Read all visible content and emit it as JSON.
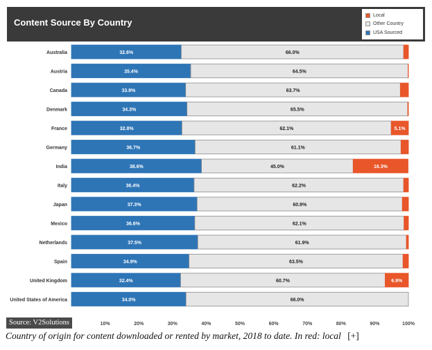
{
  "header": {
    "title": "Content Source By Country"
  },
  "legend": [
    {
      "label": "Local",
      "color": "#e8562a"
    },
    {
      "label": "Other Country",
      "color": "#e6e6e6"
    },
    {
      "label": "USA Sourced",
      "color": "#2e75b6"
    }
  ],
  "chart_data": {
    "type": "bar",
    "orientation": "horizontal",
    "stacked": true,
    "title": "Content Source By Country",
    "xlim": [
      0,
      100
    ],
    "xticks": [
      "10%",
      "20%",
      "30%",
      "40%",
      "50%",
      "60%",
      "70%",
      "80%",
      "90%",
      "100%"
    ],
    "categories": [
      "Australia",
      "Austria",
      "Canada",
      "Denmark",
      "France",
      "Germany",
      "India",
      "Italy",
      "Japan",
      "Mexico",
      "Netherlands",
      "Spain",
      "United Kingdom",
      "United States of America"
    ],
    "series": [
      {
        "name": "USA Sourced",
        "color": "#2e75b6",
        "values": [
          32.6,
          35.4,
          33.9,
          34.3,
          32.8,
          36.7,
          38.6,
          36.4,
          37.3,
          36.6,
          37.5,
          34.9,
          32.4,
          34.0
        ],
        "labels": [
          "32.6%",
          "35.4%",
          "33.9%",
          "34.3%",
          "32.8%",
          "36.7%",
          "38.6%",
          "36.4%",
          "37.3%",
          "36.6%",
          "37.5%",
          "34.9%",
          "32.4%",
          "34.0%"
        ]
      },
      {
        "name": "Other Country",
        "color": "#e6e6e6",
        "values": [
          66.0,
          64.5,
          63.7,
          65.5,
          62.1,
          61.1,
          45.0,
          62.2,
          60.9,
          62.1,
          61.9,
          63.5,
          60.7,
          66.0
        ],
        "labels": [
          "66.0%",
          "64.5%",
          "63.7%",
          "65.5%",
          "62.1%",
          "61.1%",
          "45.0%",
          "62.2%",
          "60.9%",
          "62.1%",
          "61.9%",
          "63.5%",
          "60.7%",
          "66.0%"
        ]
      },
      {
        "name": "Local",
        "color": "#e8562a",
        "values": [
          1.4,
          0.1,
          2.4,
          0.2,
          5.1,
          2.2,
          16.3,
          1.4,
          1.8,
          1.3,
          0.6,
          1.6,
          6.9,
          0
        ],
        "labels": [
          "",
          "",
          "",
          "",
          "5.1%",
          "",
          "16.3%",
          "",
          "",
          "",
          "",
          "",
          "6.9%",
          ""
        ]
      }
    ]
  },
  "source": "Source: V2Solutions",
  "caption": {
    "text": "Country of origin for content downloaded or rented by market, 2018 to date. In red: local",
    "link": "[+]"
  }
}
